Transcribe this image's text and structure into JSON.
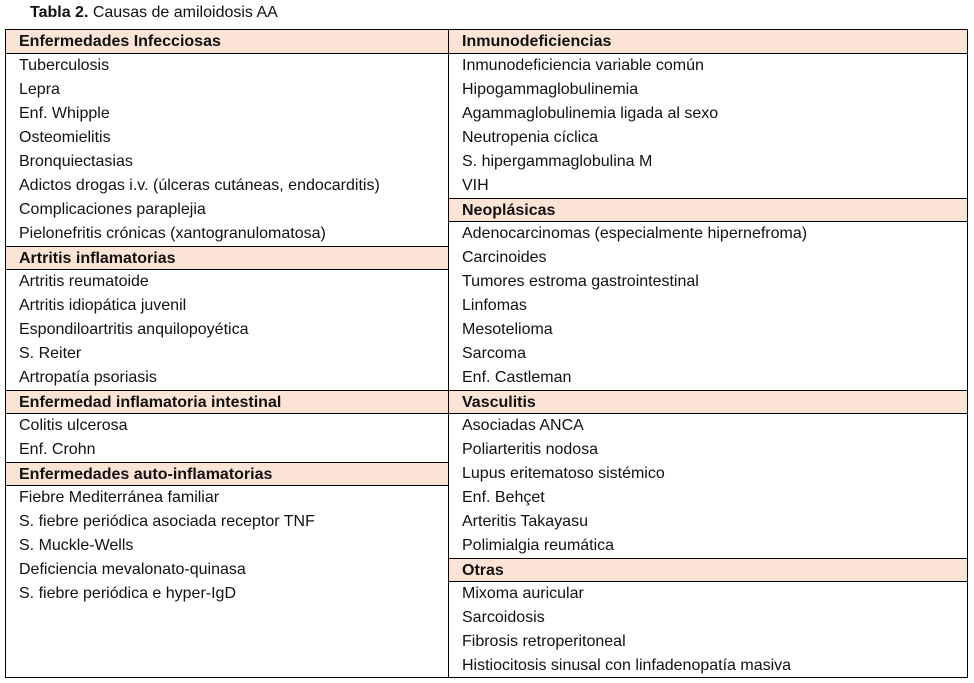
{
  "caption": {
    "label": "Tabla 2.",
    "text": " Causas de amiloidosis AA"
  },
  "columns": [
    [
      {
        "header": "Enfermedades Infecciosas",
        "items": [
          "Tuberculosis",
          "Lepra",
          "Enf. Whipple",
          "Osteomielitis",
          "Bronquiectasias",
          "Adictos drogas i.v. (úlceras cutáneas, endocarditis)",
          "Complicaciones paraplejia",
          "Pielonefritis crónicas (xantogranulomatosa)"
        ]
      },
      {
        "header": "Artritis inflamatorias",
        "items": [
          "Artritis reumatoide",
          "Artritis idiopática juvenil",
          "Espondiloartritis anquilopoyética",
          "S. Reiter",
          "Artropatía psoriasis"
        ]
      },
      {
        "header": "Enfermedad inflamatoria intestinal",
        "items": [
          "Colitis ulcerosa",
          "Enf. Crohn"
        ]
      },
      {
        "header": "Enfermedades auto-inflamatorias",
        "items": [
          "Fiebre Mediterránea familiar",
          "S. fiebre periódica asociada receptor TNF",
          "S. Muckle-Wells",
          "Deficiencia mevalonato-quinasa",
          "S. fiebre periódica e hyper-IgD"
        ]
      }
    ],
    [
      {
        "header": "Inmunodeficiencias",
        "items": [
          "Inmunodeficiencia variable común",
          "Hipogammaglobulinemia",
          "Agammaglobulinemia ligada al sexo",
          "Neutropenia cíclica",
          "S. hipergammaglobulina M",
          "VIH"
        ]
      },
      {
        "header": "Neoplásicas",
        "items": [
          "Adenocarcinomas (especialmente hipernefroma)",
          "Carcinoides",
          "Tumores estroma gastrointestinal",
          "Linfomas",
          "Mesotelioma",
          "Sarcoma",
          "Enf. Castleman"
        ]
      },
      {
        "header": "Vasculitis",
        "items": [
          "Asociadas ANCA",
          "Poliarteritis nodosa",
          "Lupus eritematoso sistémico",
          "Enf. Behçet",
          "Arteritis Takayasu",
          "Polimialgia reumática"
        ]
      },
      {
        "header": "Otras",
        "items": [
          "Mixoma auricular",
          "Sarcoidosis",
          "Fibrosis retroperitoneal",
          "Histiocitosis sinusal con linfadenopatía masiva"
        ]
      }
    ]
  ]
}
